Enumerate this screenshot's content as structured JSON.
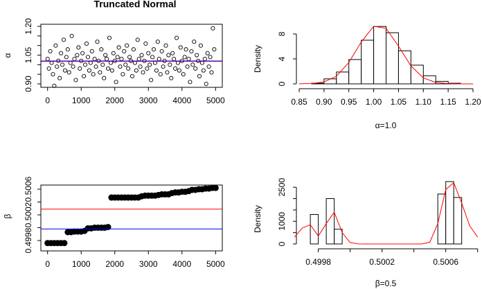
{
  "chart_data": [
    {
      "type": "scatter",
      "title": "Truncated Normal",
      "ylabel": "α",
      "marker": "open",
      "color": "black",
      "x": [
        0,
        40,
        80,
        120,
        160,
        200,
        240,
        280,
        320,
        360,
        400,
        440,
        480,
        520,
        560,
        600,
        640,
        680,
        720,
        760,
        800,
        840,
        880,
        920,
        960,
        1000,
        1040,
        1080,
        1120,
        1160,
        1200,
        1240,
        1280,
        1320,
        1360,
        1400,
        1440,
        1480,
        1520,
        1560,
        1600,
        1640,
        1680,
        1720,
        1760,
        1800,
        1840,
        1880,
        1920,
        1960,
        2000,
        2040,
        2080,
        2120,
        2160,
        2200,
        2240,
        2280,
        2320,
        2360,
        2400,
        2440,
        2480,
        2520,
        2560,
        2600,
        2640,
        2680,
        2720,
        2760,
        2800,
        2840,
        2880,
        2920,
        2960,
        3000,
        3040,
        3080,
        3120,
        3160,
        3200,
        3240,
        3280,
        3320,
        3360,
        3400,
        3440,
        3480,
        3520,
        3560,
        3600,
        3640,
        3680,
        3720,
        3760,
        3800,
        3840,
        3880,
        3920,
        3960,
        4000,
        4040,
        4080,
        4120,
        4160,
        4200,
        4240,
        4280,
        4320,
        4360,
        4400,
        4440,
        4480,
        4520,
        4560,
        4600,
        4640,
        4680,
        4720,
        4760,
        4800,
        4840,
        4880,
        4920,
        4960
      ],
      "values": [
        1.03,
        0.98,
        1.07,
        1.01,
        0.95,
        0.89,
        1.1,
        0.99,
        1.02,
        0.93,
        1.06,
        1.0,
        1.13,
        0.97,
        1.04,
        1.08,
        0.96,
        1.01,
        1.15,
        0.99,
        1.03,
        0.92,
        1.05,
        1.09,
        0.98,
        1.02,
        1.06,
        0.94,
        1.0,
        1.11,
        1.04,
        0.97,
        1.01,
        1.07,
        0.95,
        1.03,
        0.99,
        1.12,
        1.02,
        0.96,
        1.08,
        1.0,
        0.93,
        1.05,
        1.03,
        0.98,
        1.14,
        1.01,
        0.97,
        1.06,
        1.02,
        0.91,
        1.04,
        1.09,
        0.99,
        1.03,
        0.95,
        1.07,
        1.0,
        1.1,
        0.98,
        1.04,
        1.02,
        0.94,
        1.08,
        1.01,
        0.97,
        1.13,
        1.03,
        0.99,
        1.05,
        0.96,
        1.02,
        1.11,
        0.98,
        1.06,
        1.0,
        0.92,
        1.04,
        1.08,
        1.01,
        0.97,
        1.12,
        1.03,
        0.95,
        1.07,
        0.99,
        1.02,
        1.1,
        0.96,
        1.05,
        1.0,
        0.93,
        1.06,
        1.03,
        0.98,
        1.14,
        1.01,
        0.97,
        1.09,
        1.02,
        0.95,
        1.04,
        1.08,
        0.99,
        1.03,
        0.91,
        1.07,
        1.0,
        1.12,
        0.98,
        1.05,
        1.02,
        0.94,
        1.1,
        1.01,
        0.97,
        1.03,
        0.9,
        1.06,
        0.99,
        1.04,
        0.96,
        1.19,
        1.08
      ],
      "hlines": [
        {
          "value": 1.02,
          "color": "red"
        },
        {
          "value": 1.018,
          "color": "blue"
        }
      ],
      "xlim": [
        -200,
        5200
      ],
      "xticks": [
        0,
        1000,
        2000,
        3000,
        4000,
        5000
      ],
      "ylim": [
        0.882,
        1.211
      ],
      "yticks": [
        {
          "value": 0.9,
          "label": "0.90"
        },
        1.05,
        {
          "value": 1.2,
          "label": "1.20"
        }
      ],
      "yticks_unlabeled": [
        0.95,
        1.0,
        1.1,
        1.15
      ],
      "box": true
    },
    {
      "type": "histogram",
      "xlabel": "α=1.0",
      "ylabel": "Density",
      "color": "white",
      "bins": [
        0.875,
        0.9,
        0.925,
        0.95,
        0.975,
        1.0,
        1.025,
        1.05,
        1.075,
        1.1,
        1.125,
        1.15,
        1.175
      ],
      "values": [
        0.1,
        0.8,
        1.9,
        3.9,
        7.0,
        9.2,
        8.2,
        5.3,
        3.0,
        1.3,
        0.4,
        0.1
      ],
      "curve": {
        "color": "red",
        "x": [
          0.85,
          0.875,
          0.9,
          0.925,
          0.95,
          0.975,
          1.0,
          1.025,
          1.05,
          1.075,
          1.1,
          1.125,
          1.15,
          1.175,
          1.2
        ],
        "values": [
          0.007,
          0.054,
          0.31,
          1.22,
          3.42,
          6.72,
          9.23,
          8.91,
          6.04,
          2.87,
          0.96,
          0.22,
          0.037,
          0.004,
          0
        ]
      },
      "xlim": [
        0.85,
        1.2
      ],
      "xticks": [
        0.85,
        {
          "value": 0.9,
          "label": "0.90"
        },
        0.95,
        {
          "value": 1.0,
          "label": "1.00"
        },
        1.05,
        {
          "value": 1.1,
          "label": "1.10"
        },
        1.15,
        {
          "value": 1.2,
          "label": "1.20"
        }
      ],
      "ylim": [
        0,
        9.5
      ],
      "yticks": [
        0,
        4,
        8
      ],
      "box": false
    },
    {
      "type": "scatter",
      "ylabel": "β",
      "marker": "filled",
      "color": "black",
      "x": [
        0,
        100,
        200,
        300,
        400,
        500,
        600,
        700,
        800,
        900,
        1000,
        1100,
        1200,
        1300,
        1400,
        1500,
        1600,
        1700,
        1800,
        1900,
        2000,
        2100,
        2200,
        2300,
        2400,
        2500,
        2600,
        2700,
        2800,
        2900,
        3000,
        3100,
        3200,
        3300,
        3400,
        3500,
        3600,
        3700,
        3800,
        3900,
        4000,
        4100,
        4200,
        4300,
        4400,
        4500,
        4600,
        4700,
        4800,
        4900,
        5000
      ],
      "values": [
        0.49976,
        0.49976,
        0.49976,
        0.49976,
        0.49976,
        0.49976,
        0.49993,
        0.49993,
        0.49994,
        0.49994,
        0.49994,
        0.49995,
        0.49999,
        0.49999,
        0.5,
        0.5,
        0.5,
        0.5,
        0.50001,
        0.50047,
        0.50047,
        0.50047,
        0.50047,
        0.50047,
        0.50047,
        0.50047,
        0.50047,
        0.50047,
        0.50049,
        0.5005,
        0.5005,
        0.5005,
        0.5005,
        0.50051,
        0.50052,
        0.50052,
        0.50052,
        0.50054,
        0.50055,
        0.50055,
        0.50056,
        0.50056,
        0.50057,
        0.50059,
        0.50059,
        0.5006,
        0.5006,
        0.50061,
        0.50061,
        0.50062,
        0.50062
      ],
      "hlines": [
        {
          "value": 0.50029,
          "color": "red"
        },
        {
          "value": 0.49998,
          "color": "blue"
        }
      ],
      "xlim": [
        -200,
        5200
      ],
      "xticks": [
        0,
        1000,
        2000,
        3000,
        4000,
        5000
      ],
      "ylim": [
        0.499638,
        0.500665
      ],
      "yticks": [
        0.4998,
        0.5002,
        0.5006
      ],
      "yticks_unlabeled": [
        0.5,
        0.5004
      ],
      "box": true
    },
    {
      "type": "histogram",
      "xlabel": "β=0.5",
      "ylabel": "Density",
      "color": "white",
      "bins": [
        0.49975,
        0.4998,
        0.49985,
        0.4999,
        0.49995,
        0.5,
        0.50005,
        0.5001,
        0.50015,
        0.5002,
        0.50025,
        0.5003,
        0.50035,
        0.5004,
        0.50045,
        0.5005,
        0.50055,
        0.5006,
        0.50065,
        0.5007
      ],
      "values": [
        1300,
        0,
        2000,
        650,
        0,
        0,
        0,
        0,
        0,
        0,
        0,
        0,
        0,
        0,
        0,
        0,
        2200,
        2750,
        2050
      ],
      "curve": {
        "color": "red",
        "x": [
          0.49965,
          0.4997,
          0.49975,
          0.4998,
          0.49985,
          0.4999,
          0.49995,
          0.5,
          0.50005,
          0.5001,
          0.50015,
          0.5002,
          0.50025,
          0.5003,
          0.50035,
          0.5004,
          0.50045,
          0.5005,
          0.50055,
          0.5006,
          0.50065,
          0.5007,
          0.50075,
          0.5008
        ],
        "values": [
          300,
          700,
          850,
          350,
          900,
          1400,
          500,
          60,
          5,
          0,
          0,
          0,
          0,
          0,
          0,
          0,
          0,
          80,
          900,
          2400,
          2700,
          1800,
          800,
          300
        ]
      },
      "xlim": [
        0.49968,
        0.50081
      ],
      "xticks": [
        0.4998,
        0.5002,
        0.5006
      ],
      "xticks_unlabeled": [
        0.5,
        0.5004,
        0.5008
      ],
      "ylim": [
        0,
        2750
      ],
      "yticks": [
        0,
        1000,
        2500
      ],
      "yticks_unlabeled": [
        500,
        1500,
        2000
      ],
      "box": false
    }
  ]
}
